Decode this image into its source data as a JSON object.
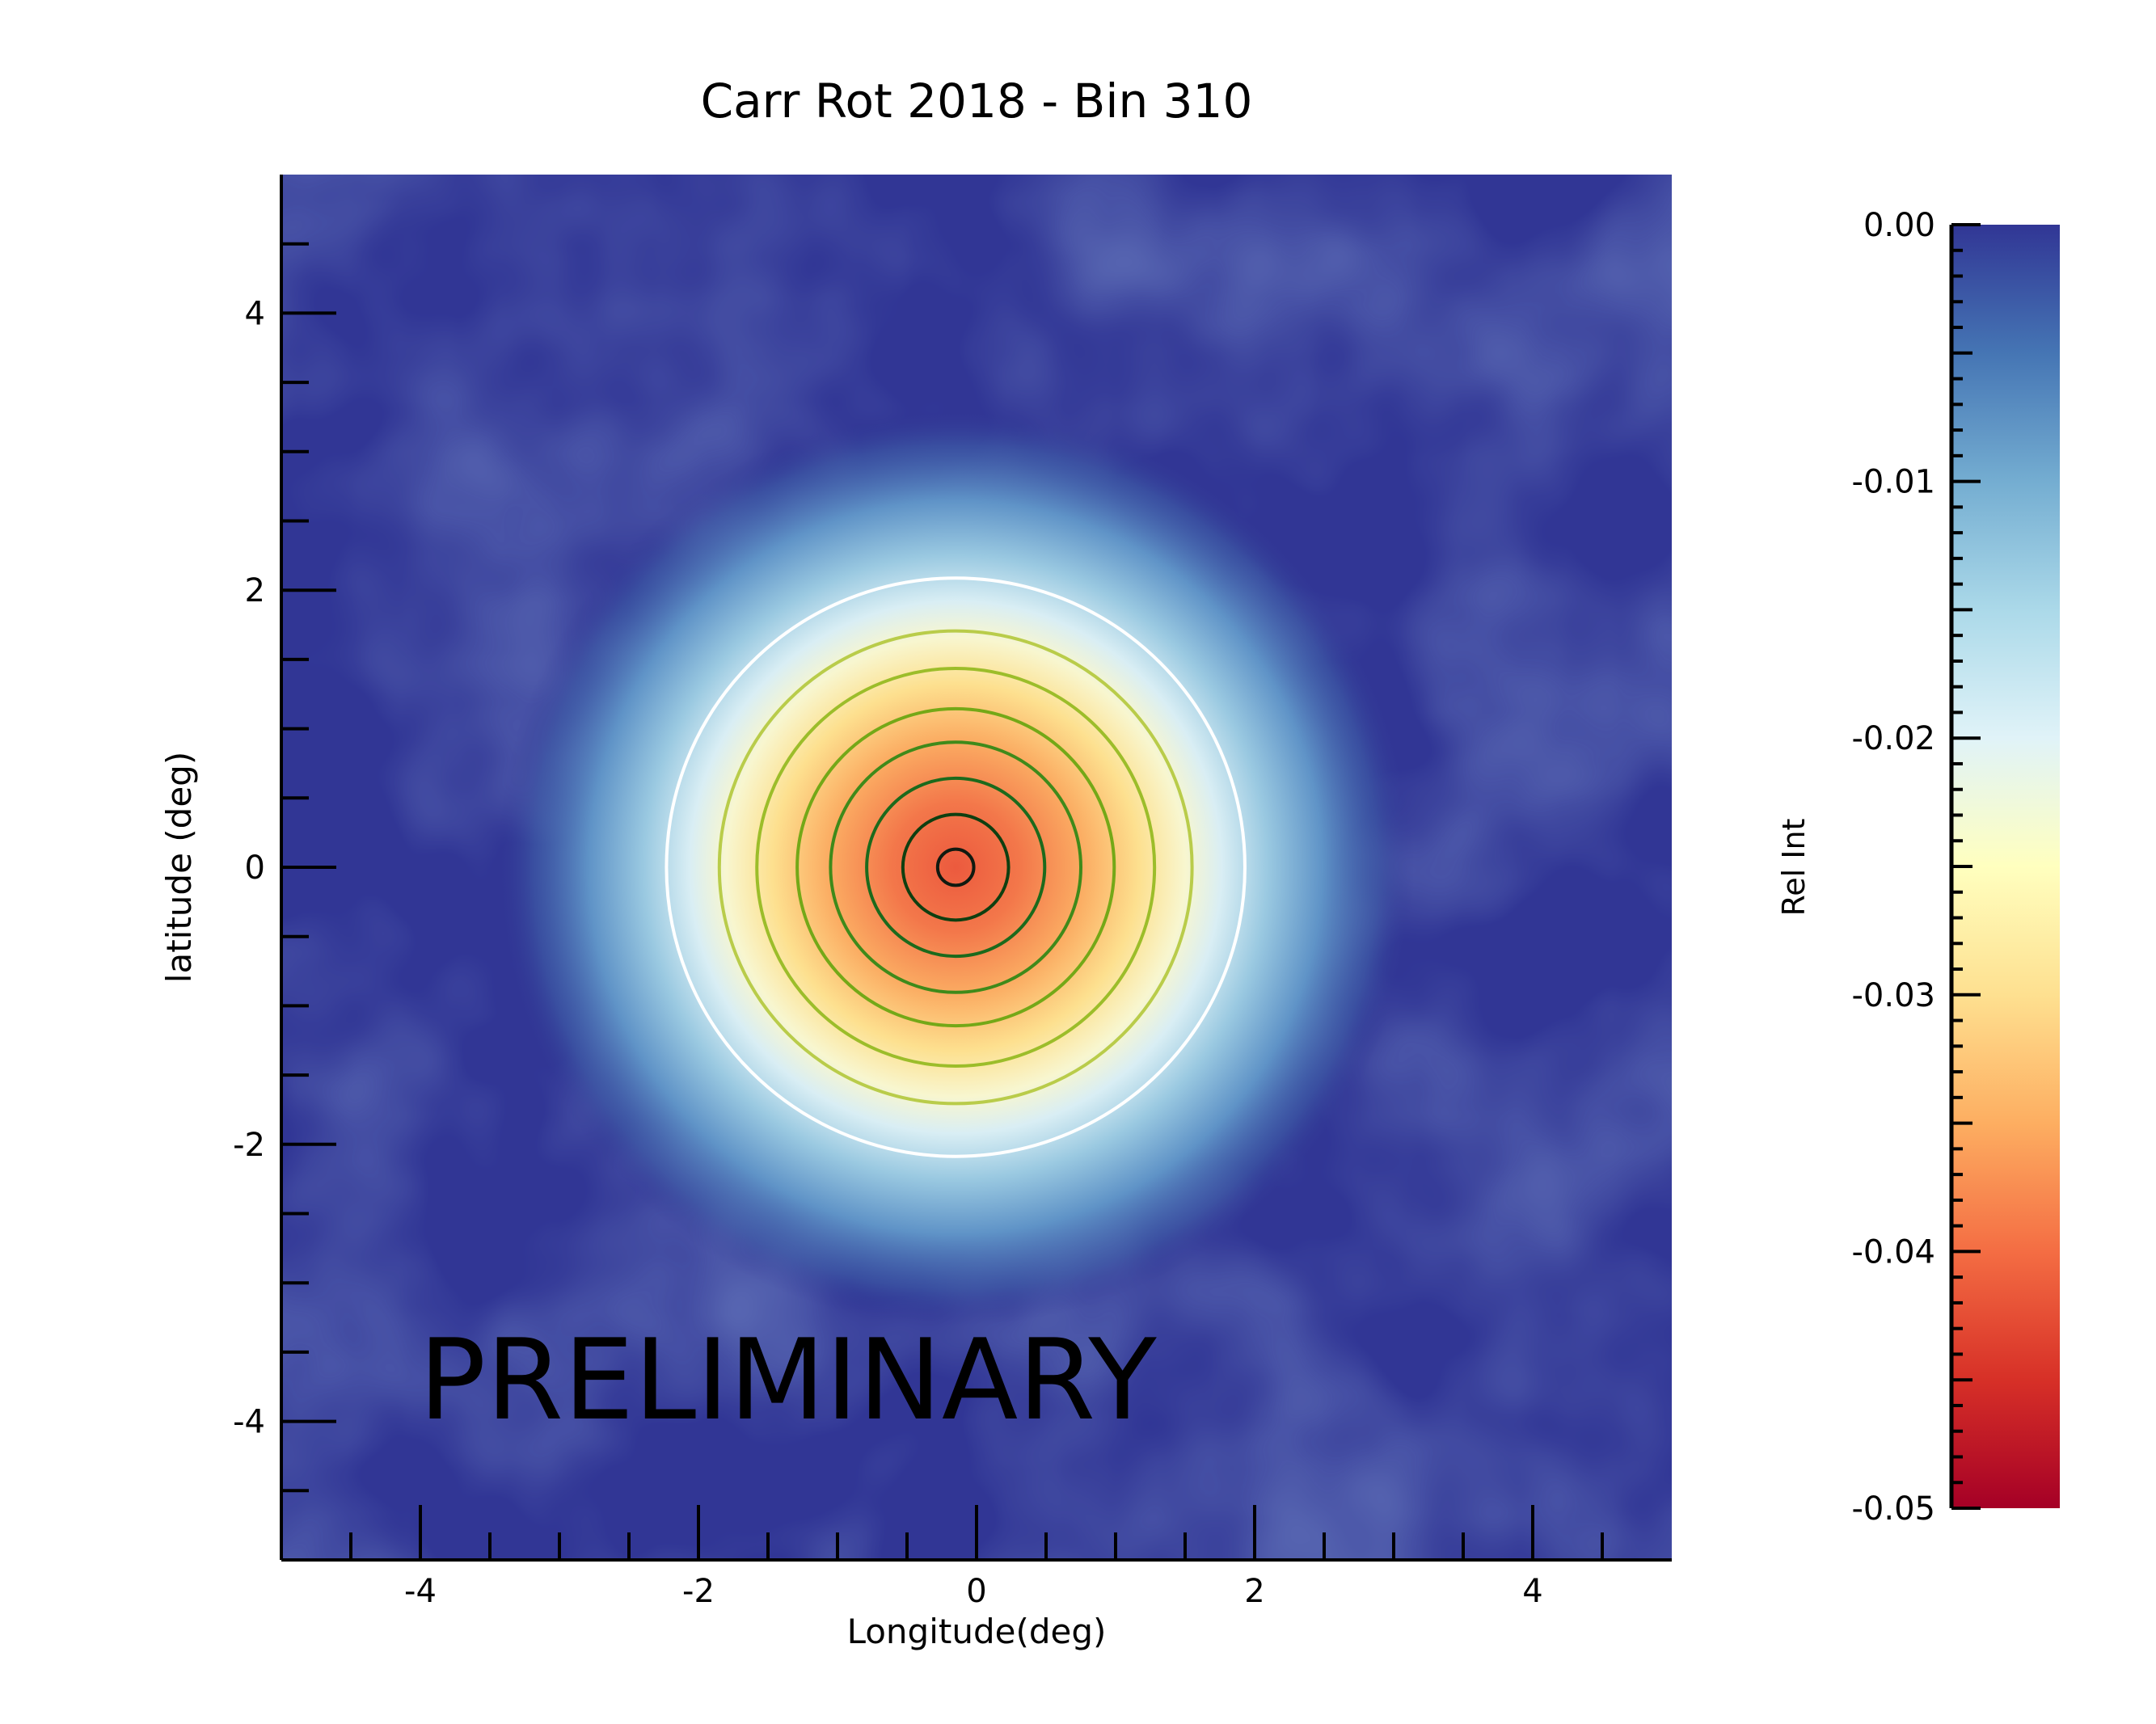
{
  "chart_data": {
    "type": "heatmap",
    "title": "Carr Rot 2018 -  Bin  310",
    "xlabel": "Longitude(deg)",
    "ylabel": "latitude (deg)",
    "xlim": [
      -5,
      5
    ],
    "ylim": [
      -5,
      5
    ],
    "x_ticks": [
      -4,
      -2,
      0,
      2,
      4
    ],
    "x_tick_labels": [
      "-4",
      "-2",
      "0",
      "2",
      "4"
    ],
    "y_ticks": [
      4,
      2,
      0,
      -2,
      -4
    ],
    "y_tick_labels": [
      "4",
      "2",
      "0",
      "-2",
      "-4"
    ],
    "watermark": "PRELIMINARY",
    "colorbar": {
      "label": "Rel Int",
      "range": [
        -0.05,
        0.0
      ],
      "ticks": [
        0.0,
        -0.01,
        -0.02,
        -0.03,
        -0.04,
        -0.05
      ],
      "tick_labels": [
        "0.00",
        "-0.01",
        "-0.02",
        "-0.03",
        "-0.04",
        "-0.05"
      ],
      "colormap_stops": [
        "#313695",
        "#4575b4",
        "#74add1",
        "#abd9e9",
        "#e0f3f8",
        "#ffffbf",
        "#fee090",
        "#fdae61",
        "#f46d43",
        "#d73027",
        "#a50026"
      ]
    },
    "center": {
      "x": -0.15,
      "y": 0.0
    },
    "contours": [
      {
        "radius_deg": 2.08,
        "color": "#ffffff"
      },
      {
        "radius_deg": 1.7,
        "color": "#b9cc4a"
      },
      {
        "radius_deg": 1.43,
        "color": "#9cbd2a"
      },
      {
        "radius_deg": 1.14,
        "color": "#74a817"
      },
      {
        "radius_deg": 0.9,
        "color": "#3f8a1a"
      },
      {
        "radius_deg": 0.64,
        "color": "#1c6a1c"
      },
      {
        "radius_deg": 0.38,
        "color": "#0f3f10"
      },
      {
        "radius_deg": 0.13,
        "color": "#101a10"
      }
    ],
    "background_color": "#313695"
  }
}
